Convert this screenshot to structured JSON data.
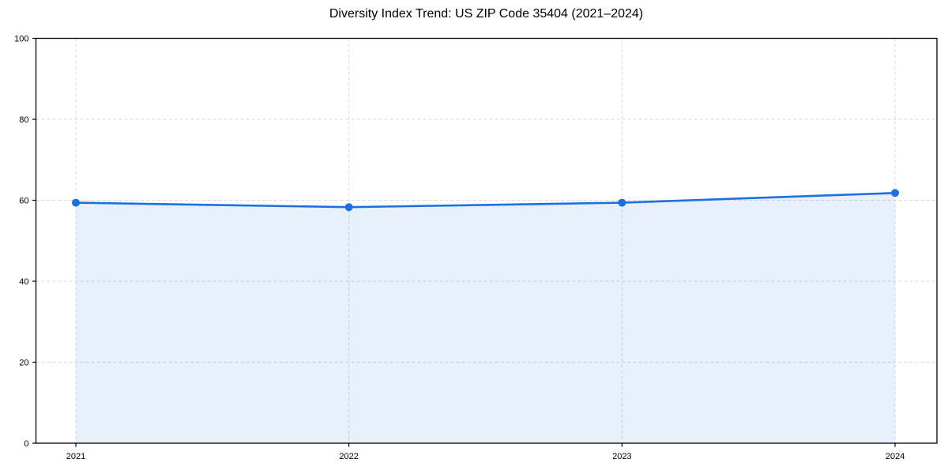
{
  "title": "Diversity Index Trend: US ZIP Code 35404 (2021–2024)",
  "colors": {
    "line": "#1e6fe0",
    "marker": "#1e6fe0",
    "area_fill": "#1e6fe0",
    "area_opacity": 0.1,
    "grid": "#d9d9d9",
    "spine": "#000000",
    "tick": "#000000",
    "text": "#000000",
    "background": "#ffffff"
  },
  "chart_data": {
    "type": "area",
    "categories": [
      "2021",
      "2022",
      "2023",
      "2024"
    ],
    "series": [
      {
        "name": "Diversity Index",
        "values": [
          59.4,
          58.3,
          59.4,
          61.8
        ]
      }
    ],
    "title": "Diversity Index Trend: US ZIP Code 35404 (2021–2024)",
    "xlabel": "",
    "ylabel": "",
    "ylim": [
      0,
      100
    ],
    "yticks": [
      0,
      20,
      40,
      60,
      80,
      100
    ],
    "grid": true,
    "grid_style": "dashed",
    "legend_position": "none",
    "marker_shape": "circle"
  }
}
